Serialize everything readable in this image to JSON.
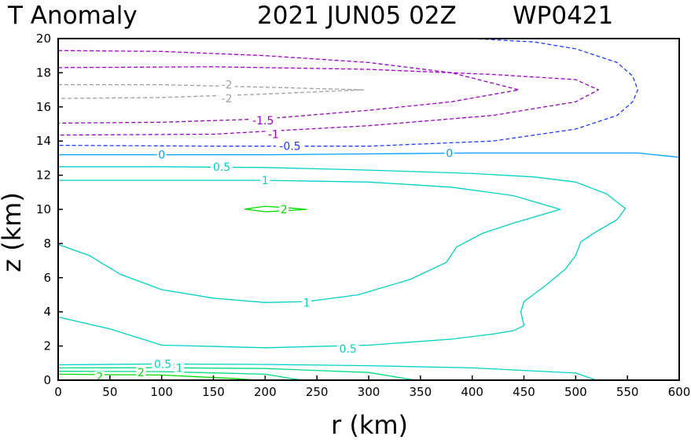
{
  "chart_data": {
    "type": "contour",
    "title": "T Anomaly",
    "date": "2021 JUN05 02Z",
    "storm": "WP0421",
    "xlabel": "r (km)",
    "ylabel": "z (km)",
    "xlim": [
      0,
      600
    ],
    "ylim": [
      0,
      20
    ],
    "xticks": [
      "0",
      "50",
      "100",
      "150",
      "200",
      "250",
      "300",
      "350",
      "400",
      "450",
      "500",
      "550",
      "600"
    ],
    "yticks": [
      "0",
      "2",
      "4",
      "6",
      "8",
      "10",
      "12",
      "14",
      "16",
      "18",
      "20"
    ],
    "colors": {
      "neg2": "#a0a0a0",
      "neg15": "#a000c8",
      "neg1": "#a000c8",
      "neg05": "#1e3cff",
      "zero": "#00a0ff",
      "pos05": "#00d2c8",
      "pos1": "#00dc82",
      "pos2": "#00dc00"
    },
    "contours": [
      {
        "level": "-2",
        "color": "neg2",
        "dash": true,
        "points": [
          [
            0,
            17.3
          ],
          [
            100,
            17.3
          ],
          [
            200,
            17.15
          ],
          [
            295,
            17.0
          ],
          [
            200,
            16.75
          ],
          [
            100,
            16.55
          ],
          [
            0,
            16.5
          ]
        ]
      },
      {
        "level": "-1.5",
        "color": "neg15",
        "dash": true,
        "points": [
          [
            0,
            19.3
          ],
          [
            100,
            19.25
          ],
          [
            200,
            19.0
          ],
          [
            300,
            18.6
          ],
          [
            380,
            18.0
          ],
          [
            445,
            17.0
          ],
          [
            380,
            16.3
          ],
          [
            300,
            15.8
          ],
          [
            200,
            15.3
          ],
          [
            100,
            15.1
          ],
          [
            0,
            15.05
          ]
        ]
      },
      {
        "level": "-1",
        "color": "neg1",
        "dash": true,
        "points": [
          [
            0,
            18.3
          ],
          [
            150,
            18.35
          ],
          [
            300,
            18.2
          ],
          [
            420,
            17.9
          ],
          [
            500,
            17.6
          ],
          [
            522,
            17.0
          ],
          [
            500,
            16.3
          ],
          [
            420,
            15.5
          ],
          [
            300,
            14.9
          ],
          [
            150,
            14.4
          ],
          [
            0,
            14.35
          ]
        ]
      },
      {
        "level": "-0.5",
        "color": "neg05",
        "dash": true,
        "points": [
          [
            400,
            20
          ],
          [
            460,
            19.8
          ],
          [
            500,
            19.4
          ],
          [
            540,
            18.6
          ],
          [
            555,
            17.8
          ],
          [
            560,
            17.0
          ],
          [
            555,
            16.3
          ],
          [
            540,
            15.5
          ],
          [
            500,
            14.7
          ],
          [
            420,
            14.0
          ],
          [
            300,
            13.7
          ],
          [
            150,
            13.7
          ],
          [
            0,
            13.75
          ]
        ]
      },
      {
        "level": "0",
        "color": "zero",
        "dash": false,
        "points": [
          [
            0,
            13.2
          ],
          [
            100,
            13.2
          ],
          [
            200,
            13.2
          ],
          [
            300,
            13.25
          ],
          [
            400,
            13.3
          ],
          [
            500,
            13.3
          ],
          [
            560,
            13.3
          ],
          [
            600,
            13.05
          ]
        ]
      },
      {
        "level": "0.5",
        "color": "pos05",
        "dash": false,
        "points": [
          [
            0,
            12.5
          ],
          [
            100,
            12.5
          ],
          [
            200,
            12.45
          ],
          [
            300,
            12.3
          ],
          [
            400,
            12.1
          ],
          [
            460,
            11.9
          ],
          [
            500,
            11.6
          ],
          [
            530,
            10.9
          ],
          [
            548,
            10.05
          ],
          [
            540,
            9.4
          ],
          [
            520,
            8.7
          ],
          [
            505,
            8.1
          ],
          [
            500,
            7.3
          ],
          [
            490,
            6.5
          ],
          [
            470,
            5.5
          ],
          [
            450,
            4.6
          ],
          [
            447,
            4.0
          ],
          [
            450,
            3.2
          ],
          [
            440,
            2.9
          ],
          [
            420,
            2.7
          ],
          [
            380,
            2.4
          ],
          [
            300,
            2.05
          ],
          [
            200,
            1.9
          ],
          [
            100,
            2.05
          ],
          [
            50,
            3.0
          ],
          [
            0,
            3.7
          ]
        ]
      },
      {
        "level": "1",
        "color": "pos05",
        "dash": false,
        "points": [
          [
            0,
            11.7
          ],
          [
            100,
            11.7
          ],
          [
            200,
            11.7
          ],
          [
            300,
            11.6
          ],
          [
            380,
            11.3
          ],
          [
            440,
            10.8
          ],
          [
            485,
            10.0
          ],
          [
            440,
            9.2
          ],
          [
            410,
            8.6
          ],
          [
            385,
            7.8
          ],
          [
            375,
            6.9
          ],
          [
            340,
            5.9
          ],
          [
            290,
            5.0
          ],
          [
            240,
            4.6
          ],
          [
            200,
            4.55
          ],
          [
            150,
            4.8
          ],
          [
            100,
            5.3
          ],
          [
            60,
            6.2
          ],
          [
            30,
            7.3
          ],
          [
            0,
            7.95
          ]
        ]
      },
      {
        "level": "2",
        "color": "pos2",
        "dash": false,
        "points": [
          [
            180,
            10.02
          ],
          [
            200,
            10.18
          ],
          [
            220,
            10.1
          ],
          [
            240,
            10.0
          ],
          [
            220,
            9.92
          ],
          [
            200,
            9.86
          ],
          [
            180,
            10.02
          ]
        ]
      },
      {
        "level": "0.5",
        "color": "pos05",
        "dash": false,
        "points": [
          [
            0,
            0.9
          ],
          [
            100,
            0.95
          ],
          [
            200,
            0.92
          ],
          [
            300,
            0.85
          ],
          [
            400,
            0.72
          ],
          [
            500,
            0.42
          ],
          [
            520,
            0.0
          ]
        ]
      },
      {
        "level": "1",
        "color": "pos1",
        "dash": false,
        "points": [
          [
            0,
            0.72
          ],
          [
            100,
            0.73
          ],
          [
            200,
            0.68
          ],
          [
            300,
            0.45
          ],
          [
            345,
            0.0
          ]
        ]
      },
      {
        "level": "1.5",
        "color": "pos1",
        "dash": false,
        "points": [
          [
            0,
            0.52
          ],
          [
            100,
            0.5
          ],
          [
            200,
            0.35
          ],
          [
            235,
            0.0
          ]
        ]
      },
      {
        "level": "2",
        "color": "pos2",
        "dash": false,
        "points": [
          [
            0,
            0.35
          ],
          [
            100,
            0.3
          ],
          [
            170,
            0.1
          ],
          [
            190,
            0.0
          ]
        ]
      }
    ],
    "labels": [
      {
        "text": "-2",
        "color": "neg2",
        "x": 163,
        "y": 17.3
      },
      {
        "text": "-2",
        "color": "neg2",
        "x": 163,
        "y": 16.5
      },
      {
        "text": "-1.5",
        "color": "neg15",
        "x": 198,
        "y": 15.2
      },
      {
        "text": "-1",
        "color": "neg1",
        "x": 208,
        "y": 14.4
      },
      {
        "text": "-0.5",
        "color": "neg05",
        "x": 224,
        "y": 13.7
      },
      {
        "text": "0",
        "color": "zero",
        "x": 100,
        "y": 13.2
      },
      {
        "text": "0",
        "color": "zero",
        "x": 378,
        "y": 13.3
      },
      {
        "text": "0.5",
        "color": "pos05",
        "x": 158,
        "y": 12.5
      },
      {
        "text": "1",
        "color": "pos05",
        "x": 200,
        "y": 11.7
      },
      {
        "text": "2",
        "color": "pos2",
        "x": 218,
        "y": 10.0
      },
      {
        "text": "1",
        "color": "pos05",
        "x": 240,
        "y": 4.55
      },
      {
        "text": "0.5",
        "color": "pos05",
        "x": 280,
        "y": 1.85
      },
      {
        "text": "0.5",
        "color": "pos05",
        "x": 101,
        "y": 0.95
      },
      {
        "text": "1",
        "color": "pos1",
        "x": 117,
        "y": 0.72
      },
      {
        "text": "2",
        "color": "pos2",
        "x": 80,
        "y": 0.45
      },
      {
        "text": "2",
        "color": "pos2",
        "x": 40,
        "y": 0.2
      }
    ]
  }
}
